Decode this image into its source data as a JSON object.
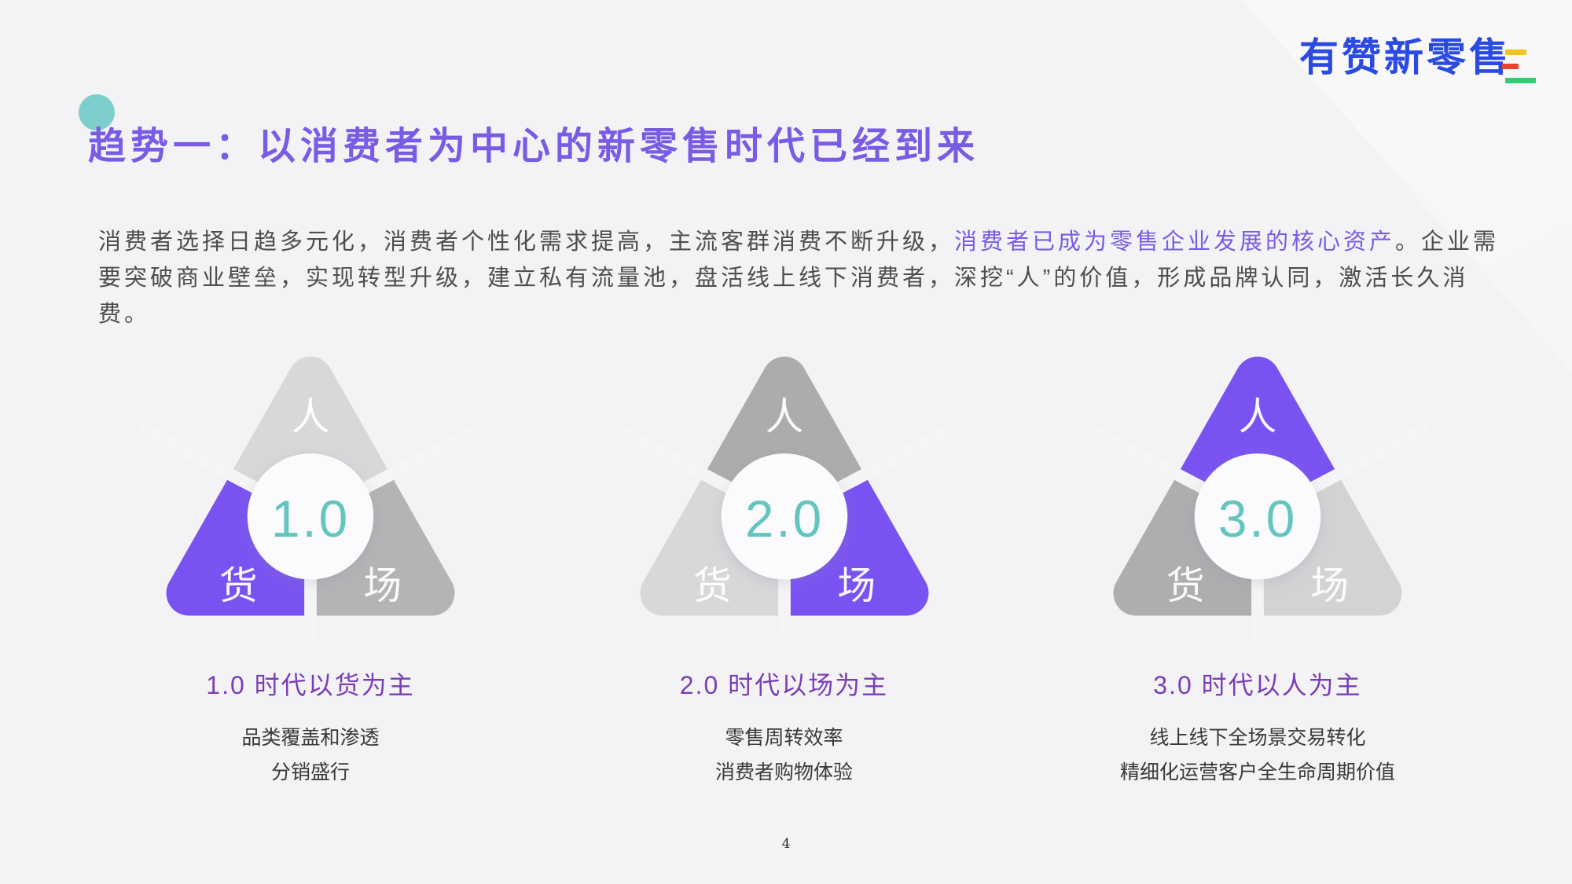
{
  "slide": {
    "logo": {
      "text": "有赞新零售",
      "color": "#2B4AE2",
      "dash_colors": [
        "#F5C31D",
        "#E8432B",
        "#2BCE71"
      ]
    },
    "title": {
      "text": "趋势一：以消费者为中心的新零售时代已经到来",
      "color": "#7A5BE6",
      "dot_color": "#6CCAC6"
    },
    "paragraph": {
      "part1": "消费者选择日趋多元化，消费者个性化需求提高，主流客群消费不断升级，",
      "highlight": "消费者已成为零售企业发展的核心资产",
      "highlight_color": "#7A5BE6",
      "part2": "。企业需要突破商业壁垒，实现转型升级，建立私有流量池，盘活线上线下消费者，深挖“人”的价值，形成品牌认同，激活长久消费。"
    },
    "page_number": "4"
  },
  "diagram": {
    "accent_purple": "#7A52F2",
    "number_color": "#63C4C0",
    "caption_title_color": "#7A3DB8",
    "eras": [
      {
        "number": "1.0",
        "labels": {
          "top": "人",
          "left": "货",
          "right": "场"
        },
        "segment_colors": {
          "top": "#D8D8DA",
          "left": "#7A52F2",
          "right": "#B4B4B6"
        },
        "caption_title": "1.0 时代以货为主",
        "caption_lines": [
          "品类覆盖和渗透",
          "分销盛行"
        ]
      },
      {
        "number": "2.0",
        "labels": {
          "top": "人",
          "left": "货",
          "right": "场"
        },
        "segment_colors": {
          "top": "#ACACAE",
          "left": "#D8D8DA",
          "right": "#7A52F2"
        },
        "caption_title": "2.0 时代以场为主",
        "caption_lines": [
          "零售周转效率",
          "消费者购物体验"
        ]
      },
      {
        "number": "3.0",
        "labels": {
          "top": "人",
          "left": "货",
          "right": "场"
        },
        "segment_colors": {
          "top": "#7A52F2",
          "left": "#AEAEB0",
          "right": "#D3D3D5"
        },
        "caption_title": "3.0 时代以人为主",
        "caption_lines": [
          "线上线下全场景交易转化",
          "精细化运营客户全生命周期价值"
        ]
      }
    ]
  }
}
